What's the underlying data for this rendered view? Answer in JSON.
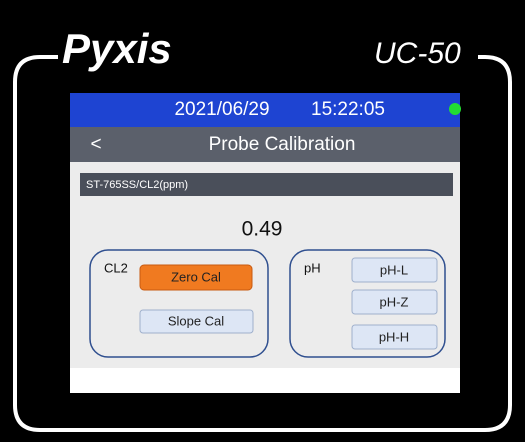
{
  "header": {
    "brand": "Pyxis",
    "model": "UC-50"
  },
  "status": {
    "date": "2021/06/29",
    "time": "15:22:05"
  },
  "nav": {
    "back": "<",
    "title": "Probe Calibration"
  },
  "probe": {
    "label": "ST-765SS/CL2(ppm)",
    "value": "0.49"
  },
  "cl2": {
    "label": "CL2",
    "buttons": [
      "Zero Cal",
      "Slope Cal"
    ]
  },
  "ph": {
    "label": "pH",
    "buttons": [
      "pH-L",
      "pH-Z",
      "pH-H"
    ]
  }
}
